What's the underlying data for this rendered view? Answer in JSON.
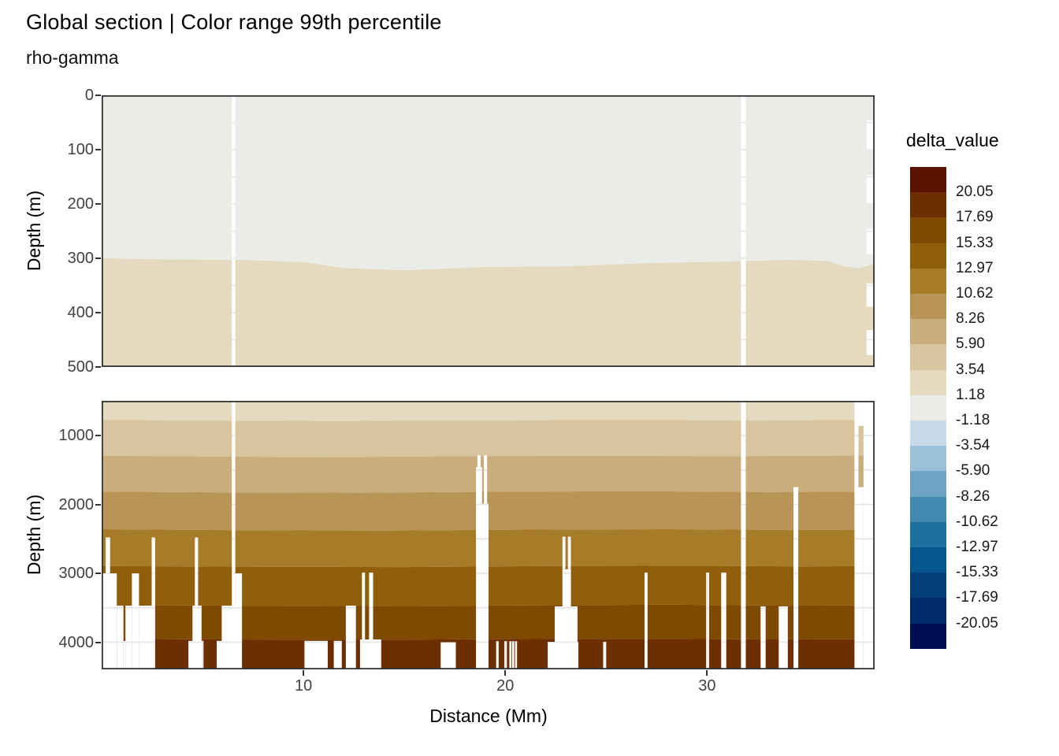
{
  "title": "Global section | Color range 99th percentile",
  "subtitle": "rho-gamma",
  "axes": {
    "x": {
      "title": "Distance (Mm)",
      "ticks": [
        10,
        20,
        30
      ],
      "range": [
        0,
        38.3
      ]
    },
    "y_top": {
      "title": "Depth (m)",
      "ticks": [
        0,
        100,
        200,
        300,
        400,
        500
      ],
      "range": [
        0,
        500
      ]
    },
    "y_bottom": {
      "title": "Depth (m)",
      "ticks": [
        1000,
        2000,
        3000,
        4000
      ],
      "range": [
        497,
        4394
      ]
    }
  },
  "legend": {
    "title": "delta_value",
    "boundary_labels": [
      "20.05",
      "17.69",
      "15.33",
      "12.97",
      "10.62",
      "8.26",
      "5.90",
      "3.54",
      "1.18",
      "-1.18",
      "-3.54",
      "-5.90",
      "-8.26",
      "-10.62",
      "-12.97",
      "-15.33",
      "-17.69",
      "-20.05"
    ],
    "colors": [
      "#5b1200",
      "#6d2f00",
      "#7e4a00",
      "#8f5f0a",
      "#a67c29",
      "#b89557",
      "#c9ae7c",
      "#d7c59f",
      "#e5dabf",
      "#eaece8",
      "#c8dae8",
      "#9bc0d8",
      "#6ea5c4",
      "#4189ae",
      "#1c6f9f",
      "#055590",
      "#033e7b",
      "#02296a",
      "#000d51"
    ]
  },
  "chart_data": {
    "type": "heatmap",
    "description": "Ocean depth section of delta_value (discrete diverging brown-blue bands); white areas are missing data / seafloor",
    "grid": {
      "color": "#e3e3e3",
      "v_ticks_mm": [
        5,
        10,
        15,
        20,
        25,
        30,
        35
      ],
      "h_step_top_m": 50,
      "h_step_bottom_m": 500
    },
    "facets": {
      "top": {
        "depth_range": [
          0,
          500
        ],
        "bands": [
          {
            "value_range": "-1.18 to 1.18",
            "color": "#eaece8",
            "from_depth": 0
          },
          {
            "value_range": "1.18 to 3.54",
            "color": "#e5dabf",
            "from_depth": "contour_1_18"
          }
        ],
        "contour_1_18": [
          [
            0,
            300
          ],
          [
            3,
            302
          ],
          [
            7,
            303
          ],
          [
            10,
            307
          ],
          [
            12,
            318
          ],
          [
            15,
            322
          ],
          [
            19,
            316
          ],
          [
            23,
            315
          ],
          [
            27,
            309
          ],
          [
            31,
            306
          ],
          [
            34,
            303
          ],
          [
            36,
            305
          ],
          [
            36.8,
            315
          ],
          [
            37.5,
            318
          ],
          [
            38.3,
            311
          ]
        ],
        "gaps": [
          [
            6.45,
            6.62,
            0,
            500
          ],
          [
            31.68,
            31.92,
            0,
            500
          ],
          [
            37.9,
            38.3,
            46,
            100
          ],
          [
            37.9,
            38.3,
            147,
            200
          ],
          [
            37.9,
            38.3,
            246,
            293
          ],
          [
            37.9,
            38.3,
            346,
            389
          ],
          [
            37.9,
            38.3,
            432,
            478
          ]
        ]
      },
      "bottom": {
        "depth_range": [
          497,
          4394
        ],
        "band_colors": [
          "#e5dabf",
          "#d7c59f",
          "#c9ae7c",
          "#b89557",
          "#a67c29",
          "#8f5f0a",
          "#7e4a00",
          "#6d2f00"
        ],
        "band_value_ranges": [
          "1.18 to 3.54",
          "3.54 to 5.90",
          "5.90 to 8.26",
          "8.26 to 10.62",
          "10.62 to 12.97",
          "12.97 to 15.33",
          "15.33 to 17.69",
          "17.69 to 20.05"
        ],
        "boundaries": [
          [
            [
              0,
              775
            ],
            [
              6,
              785
            ],
            [
              12,
              790
            ],
            [
              19,
              780
            ],
            [
              26,
              775
            ],
            [
              32,
              780
            ],
            [
              38.3,
              775
            ]
          ],
          [
            [
              0,
              1295
            ],
            [
              5,
              1305
            ],
            [
              11,
              1315
            ],
            [
              18,
              1300
            ],
            [
              25,
              1295
            ],
            [
              31,
              1300
            ],
            [
              38.3,
              1290
            ]
          ],
          [
            [
              0,
              1815
            ],
            [
              6,
              1825
            ],
            [
              13,
              1830
            ],
            [
              20,
              1815
            ],
            [
              27,
              1810
            ],
            [
              33,
              1820
            ],
            [
              38.3,
              1815
            ]
          ],
          [
            [
              0,
              2360
            ],
            [
              7,
              2375
            ],
            [
              14,
              2380
            ],
            [
              21,
              2365
            ],
            [
              28,
              2360
            ],
            [
              34,
              2370
            ],
            [
              38.3,
              2365
            ]
          ],
          [
            [
              0,
              2895
            ],
            [
              8,
              2905
            ],
            [
              15,
              2910
            ],
            [
              22,
              2895
            ],
            [
              29,
              2890
            ],
            [
              35,
              2900
            ],
            [
              38.3,
              2895
            ]
          ],
          [
            [
              0,
              3460
            ],
            [
              7,
              3470
            ],
            [
              14,
              3475
            ],
            [
              21,
              3465
            ],
            [
              28,
              3455
            ],
            [
              34,
              3470
            ],
            [
              38.3,
              3465
            ]
          ],
          [
            [
              0,
              3950
            ],
            [
              6,
              3960
            ],
            [
              13,
              3965
            ],
            [
              20,
              3955
            ],
            [
              27,
              3950
            ],
            [
              33,
              3960
            ],
            [
              38.3,
              3955
            ]
          ]
        ],
        "gaps": [
          [
            0.2,
            0.42,
            2480,
            3000
          ],
          [
            0.0,
            0.75,
            3000,
            null
          ],
          [
            0.75,
            1.08,
            3470,
            null
          ],
          [
            1.08,
            1.18,
            3980,
            null
          ],
          [
            1.18,
            1.5,
            3470,
            null
          ],
          [
            1.5,
            1.85,
            3000,
            null
          ],
          [
            1.85,
            2.65,
            3470,
            null
          ],
          [
            2.48,
            2.65,
            2480,
            3470
          ],
          [
            4.5,
            4.95,
            3470,
            null
          ],
          [
            4.3,
            5.05,
            3980,
            null
          ],
          [
            4.62,
            4.78,
            2480,
            3470
          ],
          [
            5.95,
            6.7,
            3470,
            null
          ],
          [
            5.7,
            6.7,
            3980,
            null
          ],
          [
            6.45,
            6.62,
            497,
            null
          ],
          [
            6.62,
            6.95,
            3000,
            null
          ],
          [
            10.05,
            11.2,
            3980,
            null
          ],
          [
            11.5,
            11.9,
            3980,
            null
          ],
          [
            12.1,
            12.6,
            3470,
            null
          ],
          [
            12.8,
            13.85,
            3960,
            null
          ],
          [
            12.9,
            13.05,
            2990,
            null
          ],
          [
            13.25,
            13.45,
            2990,
            null
          ],
          [
            16.8,
            17.55,
            4000,
            null
          ],
          [
            18.62,
            18.78,
            1290,
            1990
          ],
          [
            18.94,
            19.1,
            1290,
            1990
          ],
          [
            18.55,
            18.85,
            1460,
            1990
          ],
          [
            18.55,
            19.17,
            1990,
            null
          ],
          [
            19.55,
            19.67,
            3985,
            null
          ],
          [
            19.95,
            20.08,
            3985,
            null
          ],
          [
            20.2,
            20.31,
            3985,
            null
          ],
          [
            20.34,
            20.44,
            3985,
            null
          ],
          [
            20.48,
            20.58,
            3985,
            null
          ],
          [
            22.83,
            22.98,
            2470,
            2940
          ],
          [
            23.1,
            23.25,
            2470,
            2940
          ],
          [
            22.83,
            23.25,
            2940,
            null
          ],
          [
            22.45,
            23.58,
            3480,
            null
          ],
          [
            22.1,
            23.62,
            3995,
            null
          ],
          [
            24.85,
            25.0,
            3995,
            null
          ],
          [
            26.9,
            27.05,
            2990,
            null
          ],
          [
            29.95,
            30.1,
            2990,
            null
          ],
          [
            30.7,
            30.95,
            2990,
            null
          ],
          [
            31.68,
            31.92,
            497,
            null
          ],
          [
            32.65,
            32.9,
            3480,
            null
          ],
          [
            33.55,
            34.0,
            3480,
            null
          ],
          [
            34.28,
            34.52,
            1750,
            null
          ],
          [
            37.3,
            37.5,
            497,
            null
          ],
          [
            37.75,
            38.3,
            497,
            null
          ],
          [
            37.5,
            37.75,
            497,
            860
          ],
          [
            37.5,
            37.75,
            1750,
            null
          ]
        ]
      }
    }
  }
}
